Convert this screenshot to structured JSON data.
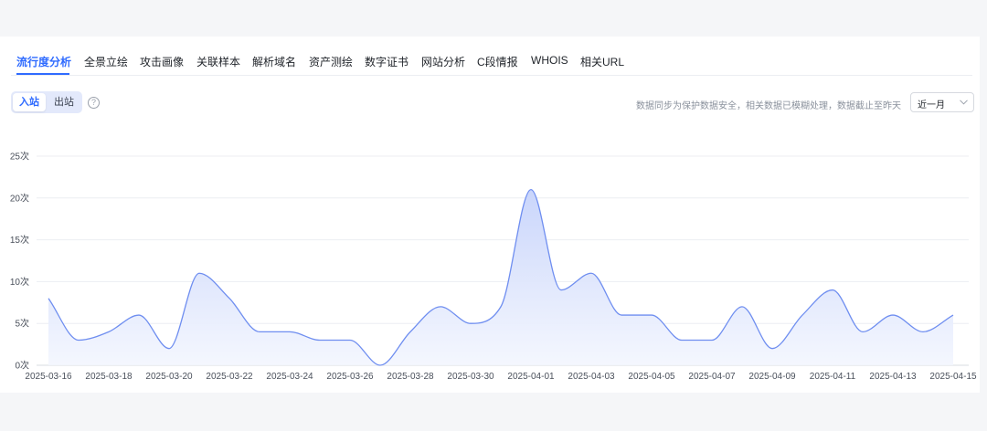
{
  "tabs": [
    {
      "label": "流行度分析",
      "active": true
    },
    {
      "label": "全景立绘",
      "active": false
    },
    {
      "label": "攻击画像",
      "active": false
    },
    {
      "label": "关联样本",
      "active": false
    },
    {
      "label": "解析域名",
      "active": false
    },
    {
      "label": "资产测绘",
      "active": false
    },
    {
      "label": "数字证书",
      "active": false
    },
    {
      "label": "网站分析",
      "active": false
    },
    {
      "label": "C段情报",
      "active": false
    },
    {
      "label": "WHOIS",
      "active": false
    },
    {
      "label": "相关URL",
      "active": false
    }
  ],
  "direction_toggle": {
    "inbound_label": "入站",
    "outbound_label": "出站",
    "selected": "入站"
  },
  "help_icon_glyph": "?",
  "notice": "数据同步为保护数据安全，相关数据已模糊处理，数据截止至昨天",
  "range_select": {
    "value": "近一月"
  },
  "colors": {
    "accent": "#2f6bff",
    "line": "#6f8ef0",
    "area_top": "#c9d5fb",
    "area_bottom": "#f3f6fe"
  },
  "chart_data": {
    "type": "area",
    "title": "",
    "xlabel": "",
    "ylabel": "",
    "ylim": [
      0,
      25
    ],
    "y_ticks": [
      0,
      5,
      10,
      15,
      20,
      25
    ],
    "y_tick_labels": [
      "0次",
      "5次",
      "10次",
      "15次",
      "20次",
      "25次"
    ],
    "x_tick_labels": [
      "2025-03-16",
      "2025-03-18",
      "2025-03-20",
      "2025-03-22",
      "2025-03-24",
      "2025-03-26",
      "2025-03-28",
      "2025-03-30",
      "2025-04-01",
      "2025-04-03",
      "2025-04-05",
      "2025-04-07",
      "2025-04-09",
      "2025-04-11",
      "2025-04-13",
      "2025-04-15"
    ],
    "grid": true,
    "series": [
      {
        "x": [
          "2025-03-16",
          "2025-03-17",
          "2025-03-18",
          "2025-03-19",
          "2025-03-20",
          "2025-03-21",
          "2025-03-22",
          "2025-03-23",
          "2025-03-24",
          "2025-03-25",
          "2025-03-26",
          "2025-03-27",
          "2025-03-28",
          "2025-03-29",
          "2025-03-30",
          "2025-03-31",
          "2025-04-01",
          "2025-04-02",
          "2025-04-03",
          "2025-04-04",
          "2025-04-05",
          "2025-04-06",
          "2025-04-07",
          "2025-04-08",
          "2025-04-09",
          "2025-04-10",
          "2025-04-11",
          "2025-04-12",
          "2025-04-13",
          "2025-04-14",
          "2025-04-15"
        ],
        "values": [
          8,
          3,
          4,
          6,
          2,
          11,
          8,
          4,
          4,
          3,
          3,
          0,
          4,
          7,
          5,
          7,
          21,
          9,
          11,
          6,
          6,
          3,
          3,
          7,
          2,
          6,
          9,
          4,
          6,
          4,
          6
        ]
      }
    ]
  }
}
